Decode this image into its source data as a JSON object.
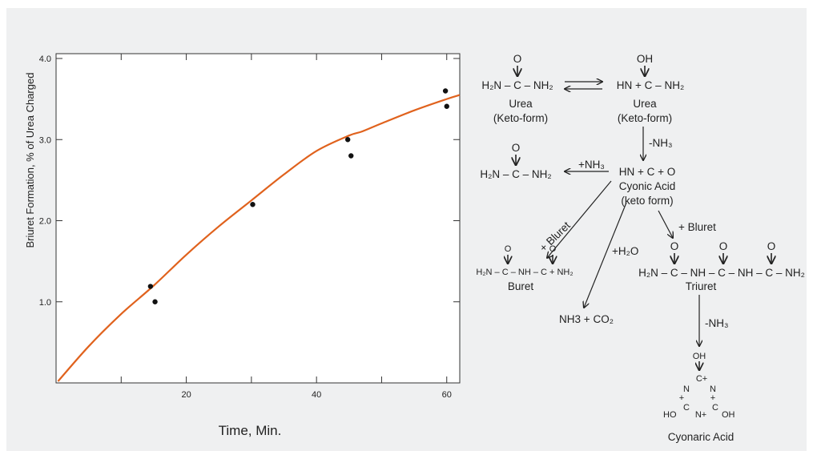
{
  "chart_data": {
    "type": "scatter",
    "title": "",
    "xlabel": "Time, Min.",
    "ylabel": "Briuret Formation, % of Urea Charged",
    "xlim": [
      0,
      62
    ],
    "ylim": [
      0,
      4.0
    ],
    "x_ticks": [
      {
        "v": 20,
        "label": "20"
      },
      {
        "v": 40,
        "label": "40"
      },
      {
        "v": 60,
        "label": "60"
      }
    ],
    "x_minor_ticks": [
      10,
      30,
      50
    ],
    "y_ticks": [
      {
        "v": 1.0,
        "label": "1.0"
      },
      {
        "v": 2.0,
        "label": "2.0"
      },
      {
        "v": 3.0,
        "label": "3.0"
      },
      {
        "v": 4.0,
        "label": "4.0"
      }
    ],
    "grid": false,
    "series": [
      {
        "kind": "points",
        "color": "#111111",
        "points": [
          [
            14.5,
            1.19
          ],
          [
            15.2,
            1.0
          ],
          [
            30.2,
            2.2
          ],
          [
            44.8,
            3.0
          ],
          [
            45.3,
            2.8
          ],
          [
            59.8,
            3.6
          ],
          [
            60.0,
            3.41
          ]
        ]
      },
      {
        "kind": "curve",
        "color": "#e0621d",
        "points": [
          [
            0.3,
            0.02
          ],
          [
            5,
            0.45
          ],
          [
            10,
            0.85
          ],
          [
            15,
            1.2
          ],
          [
            20,
            1.58
          ],
          [
            25,
            1.93
          ],
          [
            30,
            2.25
          ],
          [
            35,
            2.57
          ],
          [
            40,
            2.86
          ],
          [
            45,
            3.05
          ],
          [
            47,
            3.1
          ],
          [
            50,
            3.2
          ],
          [
            55,
            3.36
          ],
          [
            60,
            3.5
          ],
          [
            62,
            3.55
          ]
        ]
      }
    ]
  },
  "diagram": {
    "o": "O",
    "oh": "OH",
    "urea1_formula": "H₂N – C – NH₂",
    "urea1_name": "Urea",
    "urea1_form": "(Keto-form)",
    "urea2_formula": "HN + C – NH₂",
    "urea2_name": "Urea",
    "urea2_form": "(Keto-form)",
    "nh3_loss1": "-NH₃",
    "urea3_formula": "H₂N – C – NH₂",
    "nh3_gain": "+NH₃",
    "cyonic_formula": "HN + C + O",
    "cyonic_name": "Cyonic Acid",
    "cyonic_form": "(keto form)",
    "bluret1": "+ Bluret",
    "bluret2": "+ Bluret",
    "h2o": "+H₂O",
    "buret_formula": "H₂N – C – NH – C + NH₂",
    "buret_name": "Buret",
    "co2": "NH3 + CO₂",
    "triuret_formula": "H₂N – C – NH – C – NH – C – NH₂",
    "triuret_name": "Triuret",
    "nh3_loss2": "-NH₃",
    "ring_c_top": "C+",
    "ring_n_left": "N",
    "ring_n_right": "N",
    "ring_plus_left": "+",
    "ring_plus_right": "+",
    "ring_c_left": "C",
    "ring_n_bottom": "N+",
    "ring_c_right": "C",
    "ring_ho": "HO",
    "ring_oh": "OH",
    "cyonaric_name": "Cyonaric Acid"
  }
}
